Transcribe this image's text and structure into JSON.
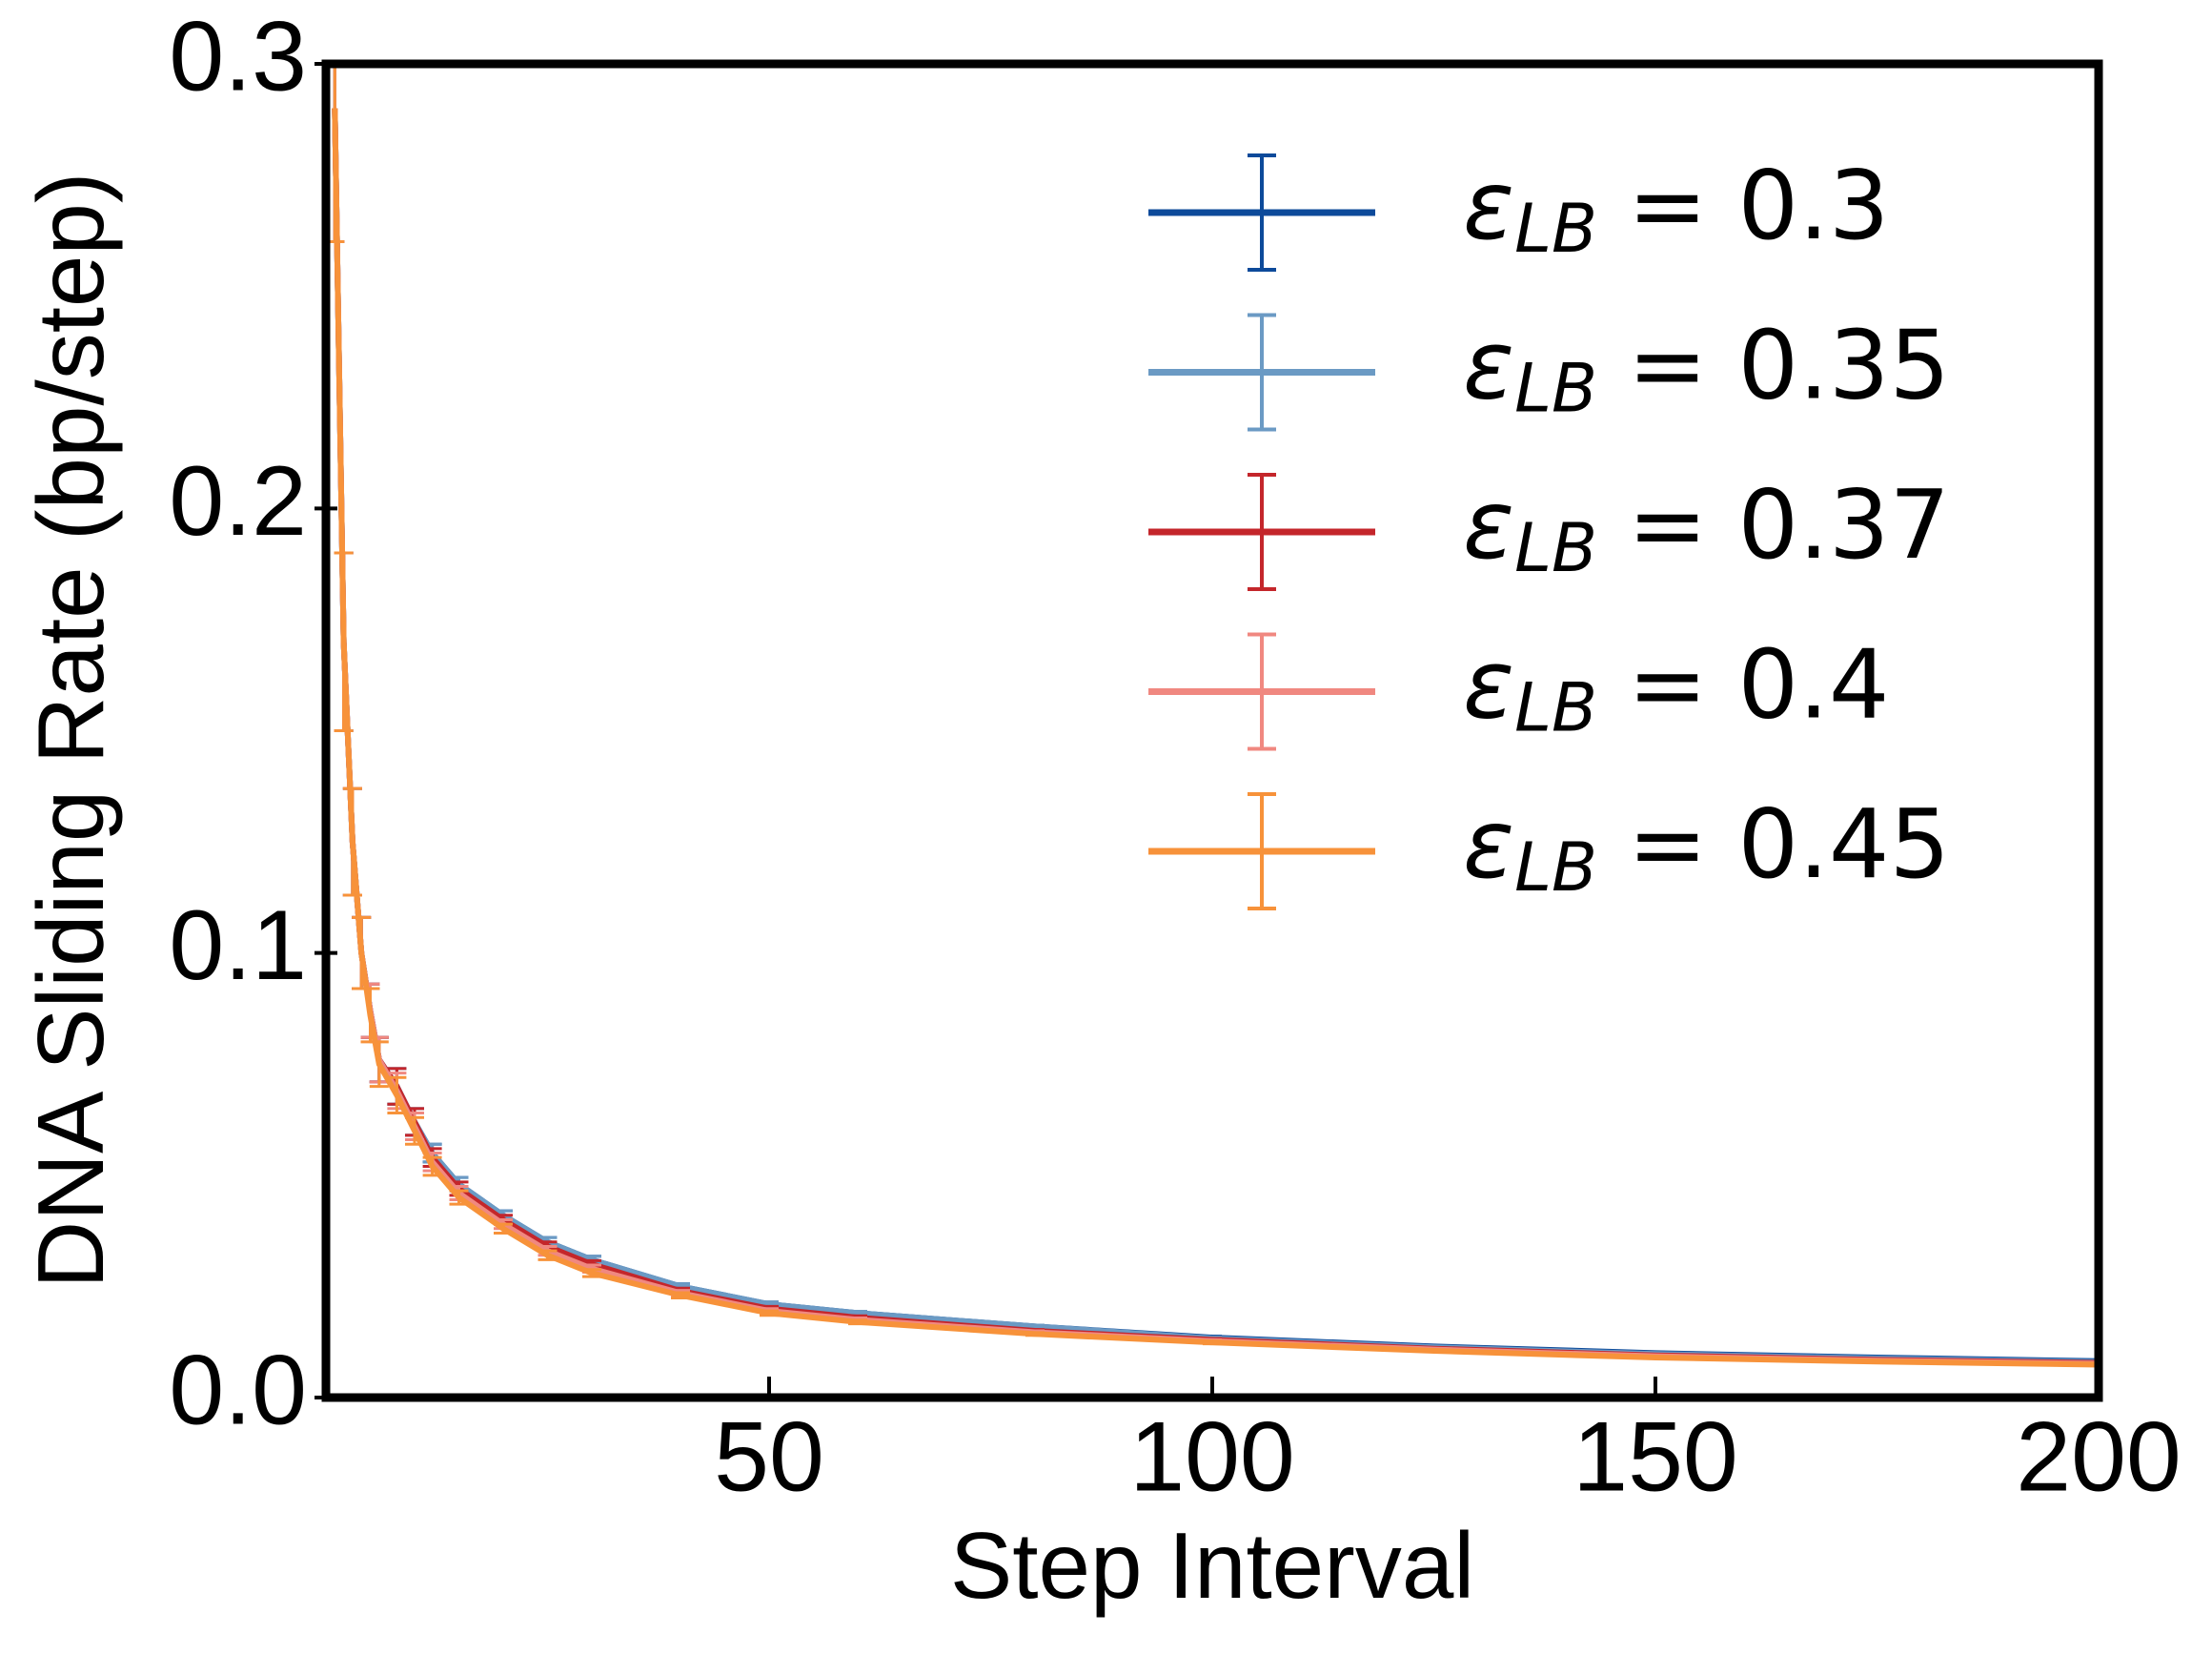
{
  "chart_data": {
    "type": "line",
    "x_label": "Step Interval",
    "y_label": "DNA Sliding Rate (bp/step)",
    "x": [
      1,
      2,
      3,
      4,
      5,
      6,
      8,
      10,
      12,
      15,
      20,
      25,
      30,
      40,
      50,
      60,
      80,
      100,
      125,
      150,
      175,
      200
    ],
    "series": [
      {
        "name": "εLB = 0.3",
        "color": "#0d4a9a",
        "values": [
          0.29,
          0.17,
          0.125,
          0.1,
          0.087,
          0.076,
          0.07,
          0.062,
          0.055,
          0.048,
          0.041,
          0.035,
          0.031,
          0.025,
          0.021,
          0.019,
          0.016,
          0.0135,
          0.0115,
          0.01,
          0.009,
          0.0082
        ],
        "errors": [
          0.03,
          0.02,
          0.012,
          0.008,
          0.006,
          0.005,
          0.004,
          0.003,
          0.002,
          0.0015,
          0.001,
          0.001,
          0.0008,
          0.0006,
          0.0005,
          0.0004,
          0.0003,
          0.0003,
          0.0002,
          0.0002,
          0.0002,
          0.0002
        ]
      },
      {
        "name": "εLB = 0.35",
        "color": "#6b9ac4",
        "values": [
          0.29,
          0.17,
          0.125,
          0.1,
          0.087,
          0.076,
          0.07,
          0.062,
          0.055,
          0.048,
          0.041,
          0.035,
          0.031,
          0.025,
          0.021,
          0.019,
          0.016,
          0.0133,
          0.0113,
          0.0098,
          0.0088,
          0.008
        ],
        "errors": [
          0.03,
          0.02,
          0.012,
          0.008,
          0.006,
          0.005,
          0.004,
          0.003,
          0.002,
          0.0015,
          0.001,
          0.001,
          0.0008,
          0.0006,
          0.0005,
          0.0004,
          0.0003,
          0.0003,
          0.0002,
          0.0002,
          0.0002,
          0.0002
        ]
      },
      {
        "name": "εLB = 0.37",
        "color": "#c4262b",
        "values": [
          0.29,
          0.17,
          0.125,
          0.1,
          0.087,
          0.076,
          0.07,
          0.062,
          0.054,
          0.047,
          0.04,
          0.034,
          0.03,
          0.024,
          0.02,
          0.018,
          0.015,
          0.013,
          0.011,
          0.0095,
          0.0085,
          0.0078
        ],
        "errors": [
          0.03,
          0.02,
          0.012,
          0.008,
          0.006,
          0.005,
          0.004,
          0.003,
          0.002,
          0.0015,
          0.001,
          0.001,
          0.0008,
          0.0006,
          0.0005,
          0.0004,
          0.0003,
          0.0003,
          0.0002,
          0.0002,
          0.0002,
          0.0002
        ]
      },
      {
        "name": "εLB = 0.4",
        "color": "#f08880",
        "values": [
          0.29,
          0.17,
          0.125,
          0.1,
          0.087,
          0.076,
          0.069,
          0.061,
          0.053,
          0.046,
          0.039,
          0.033,
          0.029,
          0.0235,
          0.0195,
          0.0175,
          0.0147,
          0.0127,
          0.0108,
          0.0093,
          0.0083,
          0.0076
        ],
        "errors": [
          0.03,
          0.02,
          0.012,
          0.008,
          0.006,
          0.005,
          0.004,
          0.003,
          0.002,
          0.0015,
          0.001,
          0.001,
          0.0008,
          0.0006,
          0.0005,
          0.0004,
          0.0003,
          0.0003,
          0.0002,
          0.0002,
          0.0002,
          0.0002
        ]
      },
      {
        "name": "εLB = 0.45",
        "color": "#f7923a",
        "values": [
          0.29,
          0.17,
          0.125,
          0.1,
          0.086,
          0.075,
          0.068,
          0.06,
          0.052,
          0.045,
          0.038,
          0.032,
          0.028,
          0.023,
          0.019,
          0.017,
          0.0143,
          0.0124,
          0.0105,
          0.009,
          0.0081,
          0.0074
        ],
        "errors": [
          0.03,
          0.02,
          0.012,
          0.008,
          0.006,
          0.005,
          0.004,
          0.003,
          0.002,
          0.0015,
          0.001,
          0.001,
          0.0008,
          0.0006,
          0.0005,
          0.0004,
          0.0003,
          0.0003,
          0.0002,
          0.0002,
          0.0002,
          0.0002
        ]
      }
    ],
    "xlim": [
      0,
      200
    ],
    "xticks": [
      50,
      100,
      150,
      200
    ],
    "ylim": [
      0,
      0.3
    ],
    "yticks": [
      {
        "value": 0,
        "label": "0.0"
      },
      0.1,
      0.2,
      0.3
    ],
    "grid": false,
    "legend": "upper right"
  }
}
